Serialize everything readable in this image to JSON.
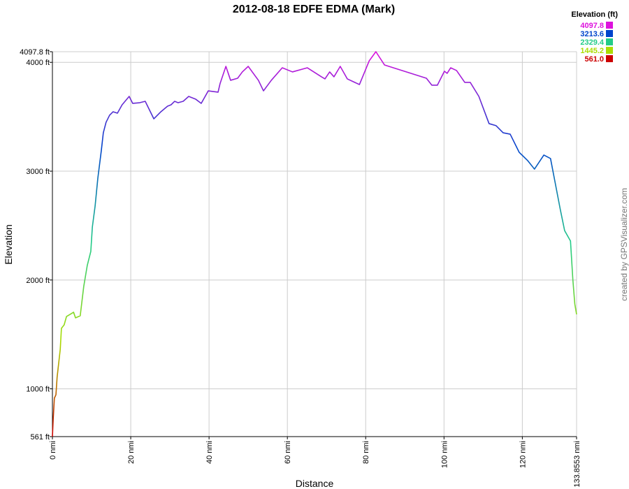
{
  "chart_data": {
    "type": "line",
    "title": "2012-08-18 EDFE EDMA (Mark)",
    "x_label": "Distance",
    "y_label": "Elevation",
    "credit": "created by GPSVisualizer.com",
    "grid": true,
    "xlim": [
      0,
      133.8553
    ],
    "xticks": [
      {
        "value": 0,
        "label": "0 nmi"
      },
      {
        "value": 20,
        "label": "20 nmi"
      },
      {
        "value": 40,
        "label": "40 nmi"
      },
      {
        "value": 60,
        "label": "60 nmi"
      },
      {
        "value": 80,
        "label": "80 nmi"
      },
      {
        "value": 100,
        "label": "100 nmi"
      },
      {
        "value": 120,
        "label": "120 nmi"
      },
      {
        "value": 133.8553,
        "label": "133.8553 nmi"
      }
    ],
    "ylim": [
      561,
      4097.8
    ],
    "yticks": [
      {
        "value": 561,
        "label": "561 ft"
      },
      {
        "value": 1000,
        "label": "1000 ft"
      },
      {
        "value": 2000,
        "label": "2000 ft"
      },
      {
        "value": 3000,
        "label": "3000 ft"
      },
      {
        "value": 4000,
        "label": "4000 ft"
      },
      {
        "value": 4097.8,
        "label": "4097.8 ft"
      }
    ],
    "color_scale": {
      "title": "Elevation (ft)",
      "values": [
        4097.8,
        3213.6,
        2329.4,
        1445.2,
        561
      ],
      "value_labels": [
        "4097.8",
        "3213.6",
        "2329.4",
        "1445.2",
        "561.0"
      ],
      "colors": [
        "#dd11dd",
        "#0044cc",
        "#22cc88",
        "#aadd00",
        "#cc0000"
      ]
    },
    "x": [
      0,
      0.2,
      0.5,
      0.9,
      1.2,
      2.0,
      2.3,
      3.0,
      3.6,
      4.5,
      5.4,
      5.9,
      7.1,
      8.0,
      8.9,
      9.8,
      10.2,
      10.9,
      11.6,
      12.5,
      13.0,
      13.7,
      14.6,
      15.5,
      16.6,
      17.8,
      19.6,
      20.5,
      22.3,
      23.7,
      25.9,
      27.7,
      29.4,
      30.3,
      31.2,
      32.1,
      33.4,
      34.8,
      36.6,
      38.0,
      39.8,
      42.3,
      42.8,
      44.3,
      45.5,
      47.3,
      48.5,
      50.0,
      52.6,
      53.9,
      55.9,
      58.7,
      61.3,
      65.1,
      68.7,
      69.6,
      70.8,
      71.9,
      73.5,
      75.3,
      78.4,
      80.9,
      82.6,
      84.8,
      95.5,
      96.9,
      98.3,
      100.1,
      100.8,
      101.7,
      103.2,
      105.3,
      106.7,
      108.9,
      111.5,
      113.3,
      115.1,
      116.9,
      119.2,
      121.4,
      123.1,
      125.5,
      127.2,
      129.7,
      130.8,
      132.3,
      132.9,
      133.4,
      133.8553
    ],
    "series": [
      {
        "name": "Elevation",
        "values": [
          561,
          721,
          914,
          946,
          1107,
          1363,
          1556,
          1588,
          1665,
          1684,
          1704,
          1652,
          1671,
          1941,
          2134,
          2262,
          2487,
          2679,
          2936,
          3193,
          3353,
          3449,
          3514,
          3546,
          3533,
          3610,
          3687,
          3623,
          3629,
          3642,
          3481,
          3546,
          3597,
          3610,
          3642,
          3629,
          3642,
          3687,
          3661,
          3623,
          3738,
          3726,
          3803,
          3963,
          3835,
          3854,
          3912,
          3963,
          3835,
          3738,
          3835,
          3950,
          3912,
          3950,
          3867,
          3848,
          3912,
          3867,
          3963,
          3848,
          3796,
          4014,
          4097.8,
          3976,
          3854,
          3790,
          3790,
          3918,
          3899,
          3950,
          3925,
          3816,
          3816,
          3687,
          3437,
          3418,
          3353,
          3340,
          3173,
          3096,
          3019,
          3148,
          3116,
          2647,
          2454,
          2358,
          2005,
          1780,
          1684
        ]
      }
    ]
  }
}
